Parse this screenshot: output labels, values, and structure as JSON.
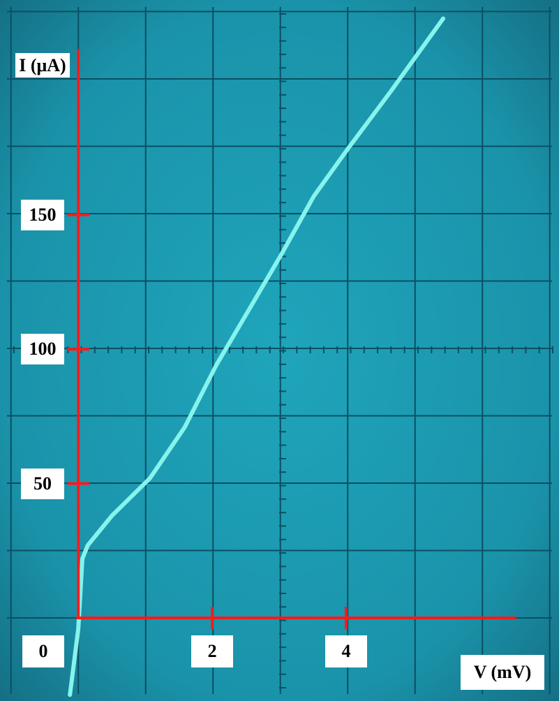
{
  "chart_data": {
    "type": "line",
    "xlabel": "V (mV)",
    "ylabel": "I (μA)",
    "x": [
      -0.125,
      0,
      0.06,
      0.14,
      0.5,
      1.07,
      1.59,
      2.06,
      2.58,
      3.05,
      3.52,
      4.04,
      4.67,
      5.45
    ],
    "series": [
      {
        "color": "#86f3ec",
        "values": [
          -28.6,
          -4,
          22,
          27,
          38,
          52,
          71,
          94,
          116,
          136,
          157,
          175,
          196,
          223
        ]
      }
    ],
    "xlim": [
      -1.17,
      7.18
    ],
    "ylim": [
      -30.9,
      229.9
    ],
    "xticks": [
      0,
      2,
      4
    ],
    "yticks": [
      50,
      100,
      150
    ],
    "grid": true,
    "axis_color": "#ff1a1a"
  }
}
